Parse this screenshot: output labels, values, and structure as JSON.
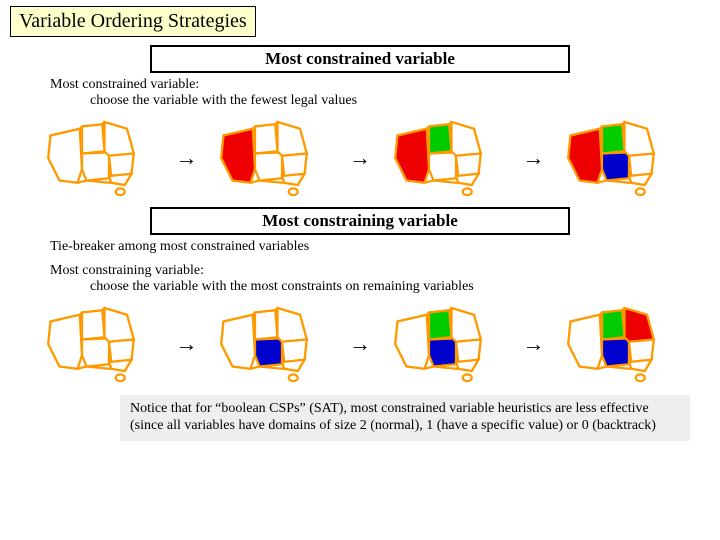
{
  "title": "Variable Ordering Strategies",
  "sections": [
    {
      "heading": "Most constrained variable",
      "def_head": "Most constrained variable:",
      "def_body": "choose the variable with the fewest legal values",
      "maps": [
        {
          "regions": {}
        },
        {
          "regions": {
            "WA": "#ee0000"
          }
        },
        {
          "regions": {
            "WA": "#ee0000",
            "NT": "#00cc00"
          }
        },
        {
          "regions": {
            "WA": "#ee0000",
            "NT": "#00cc00",
            "SA": "#0000cc"
          }
        }
      ]
    },
    {
      "heading": "Most constraining variable",
      "pre_text": "Tie-breaker among most constrained variables",
      "def_head": "Most constraining variable:",
      "def_body": "choose the variable with the most constraints on remaining variables",
      "maps": [
        {
          "regions": {}
        },
        {
          "regions": {
            "SA": "#0000cc"
          }
        },
        {
          "regions": {
            "SA": "#0000cc",
            "NT": "#00cc00"
          }
        },
        {
          "regions": {
            "SA": "#0000cc",
            "NT": "#00cc00",
            "Q": "#ee0000"
          }
        }
      ]
    }
  ],
  "footer": "Notice that for “boolean CSPs” (SAT), most constrained variable heuristics are less effective (since all variables have domains of size 2 (normal), 1 (have a specific value) or 0 (backtrack)",
  "style": {
    "map_outline": "#ff9900",
    "map_outline_width": 2,
    "map_empty_fill": "#ffffff",
    "map_width": 120,
    "map_height": 90,
    "bg": "#ffffff",
    "title_bg": "#ffffcc",
    "footer_bg": "#eeeeee"
  }
}
